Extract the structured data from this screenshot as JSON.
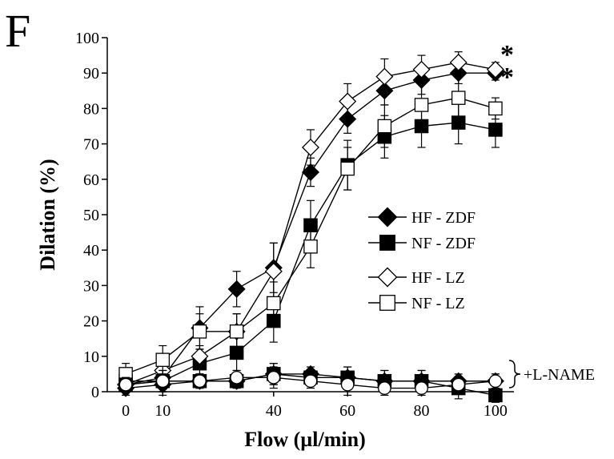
{
  "panel_label": "F",
  "chart_data": {
    "type": "line",
    "title": "",
    "xlabel": "Flow (µl/min)",
    "ylabel": "Dilation (%)",
    "xlim": [
      -5,
      105
    ],
    "ylim": [
      0,
      100
    ],
    "xticks": [
      0,
      10,
      40,
      60,
      80,
      100
    ],
    "yticks": [
      0,
      10,
      20,
      30,
      40,
      50,
      60,
      70,
      80,
      90,
      100
    ],
    "legend_position": "center-right",
    "grid": false,
    "series": [
      {
        "name": "HF - ZDF",
        "marker": "diamond",
        "fill": "#000000",
        "x": [
          0,
          10,
          20,
          30,
          40,
          50,
          60,
          70,
          80,
          90,
          100
        ],
        "y": [
          2,
          4,
          18,
          29,
          35,
          62,
          77,
          85,
          88,
          90,
          90
        ],
        "err": [
          3,
          3,
          6,
          5,
          7,
          4,
          4,
          4,
          4,
          3,
          2
        ]
      },
      {
        "name": "NF - ZDF",
        "marker": "square",
        "fill": "#000000",
        "x": [
          0,
          10,
          20,
          30,
          40,
          50,
          60,
          70,
          80,
          90,
          100
        ],
        "y": [
          3,
          3,
          8,
          11,
          20,
          47,
          64,
          72,
          75,
          76,
          74
        ],
        "err": [
          3,
          3,
          4,
          5,
          6,
          7,
          7,
          6,
          6,
          6,
          5
        ]
      },
      {
        "name": "HF - LZ",
        "marker": "diamond",
        "fill": "#ffffff",
        "x": [
          0,
          10,
          20,
          30,
          40,
          50,
          60,
          70,
          80,
          90,
          100
        ],
        "y": [
          2,
          6,
          10,
          17,
          34,
          69,
          82,
          89,
          91,
          93,
          91
        ],
        "err": [
          3,
          3,
          3,
          5,
          8,
          5,
          5,
          5,
          4,
          3,
          2
        ]
      },
      {
        "name": "NF - LZ",
        "marker": "square",
        "fill": "#ffffff",
        "x": [
          0,
          10,
          20,
          30,
          40,
          50,
          60,
          70,
          80,
          90,
          100
        ],
        "y": [
          5,
          9,
          17,
          17,
          25,
          41,
          63,
          75,
          81,
          83,
          80
        ],
        "err": [
          3,
          4,
          5,
          5,
          6,
          6,
          6,
          6,
          6,
          6,
          3
        ]
      },
      {
        "name": "",
        "marker": "diamond",
        "fill": "#000000",
        "x": [
          0,
          10,
          20,
          30,
          40,
          50,
          60,
          70,
          80,
          90,
          100
        ],
        "y": [
          1,
          2,
          3,
          3,
          5,
          5,
          4,
          3,
          3,
          3,
          3
        ],
        "err": [
          2,
          3,
          2,
          2,
          3,
          2,
          3,
          3,
          3,
          2,
          2
        ]
      },
      {
        "name": "",
        "marker": "square",
        "fill": "#000000",
        "x": [
          0,
          10,
          20,
          30,
          40,
          50,
          60,
          70,
          80,
          90,
          100
        ],
        "y": [
          2,
          3,
          3,
          3,
          5,
          4,
          4,
          3,
          3,
          1,
          -1
        ],
        "err": [
          2,
          3,
          2,
          2,
          3,
          2,
          3,
          3,
          3,
          3,
          2
        ]
      },
      {
        "name": "",
        "marker": "circle",
        "fill": "#ffffff",
        "x": [
          0,
          10,
          20,
          30,
          40,
          50,
          60,
          70,
          80,
          90,
          100
        ],
        "y": [
          2,
          3,
          3,
          4,
          4,
          3,
          2,
          1,
          1,
          2,
          3
        ],
        "err": [
          2,
          3,
          2,
          2,
          3,
          2,
          3,
          2,
          2,
          2,
          2
        ]
      }
    ],
    "annotations": {
      "stars": [
        "*",
        "*"
      ],
      "bracket_label": "+L-NAME"
    }
  }
}
